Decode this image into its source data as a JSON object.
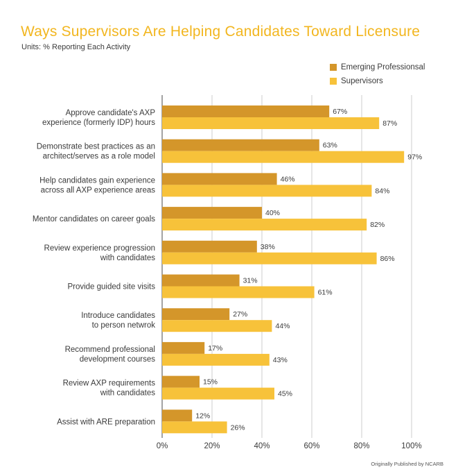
{
  "title": "Ways Supervisors Are Helping Candidates Toward Licensure",
  "subtitle": "Units: % Reporting Each Activity",
  "footnote": "Originally Published by NCARB",
  "colors": {
    "title": "#f2b61f",
    "emerging": "#d4962a",
    "supervisors": "#f7c23a",
    "grid": "#cccccc",
    "axis": "#666666"
  },
  "chart_data": {
    "type": "bar",
    "orientation": "horizontal",
    "title": "Ways Supervisors Are Helping Candidates Toward Licensure",
    "subtitle": "Units: % Reporting Each Activity",
    "xlabel": "",
    "ylabel": "",
    "xlim": [
      0,
      100
    ],
    "x_ticks": [
      "0%",
      "20%",
      "40%",
      "60%",
      "80%",
      "100%"
    ],
    "grid": true,
    "legend_position": "top-right",
    "categories": [
      [
        "Approve candidate's AXP",
        "experience (formerly IDP) hours"
      ],
      [
        "Demonstrate best practices as an",
        "architect/serves as a role model"
      ],
      [
        "Help candidates gain experience",
        "across all AXP experience areas"
      ],
      [
        "Mentor candidates on career goals"
      ],
      [
        "Review experience progression",
        "with candidates"
      ],
      [
        "Provide guided site visits"
      ],
      [
        "Introduce candidates",
        "to person netwrok"
      ],
      [
        "Recommend professional",
        "development courses"
      ],
      [
        "Review AXP requirements",
        "with candidates"
      ],
      [
        "Assist with ARE preparation"
      ]
    ],
    "series": [
      {
        "name": "Emerging Professionsal",
        "values": [
          67,
          63,
          46,
          40,
          38,
          31,
          27,
          17,
          15,
          12
        ],
        "color": "#d4962a",
        "labels": [
          "67%",
          "63%",
          "46%",
          "40%",
          "38%",
          "31%",
          "27%",
          "17%",
          "15%",
          "12%"
        ]
      },
      {
        "name": "Supervisors",
        "values": [
          87,
          97,
          84,
          82,
          86,
          61,
          44,
          43,
          45,
          26
        ],
        "color": "#f7c23a",
        "labels": [
          "87%",
          "97%",
          "84%",
          "82%",
          "86%",
          "61%",
          "44%",
          "43%",
          "45%",
          "26%"
        ]
      }
    ]
  }
}
